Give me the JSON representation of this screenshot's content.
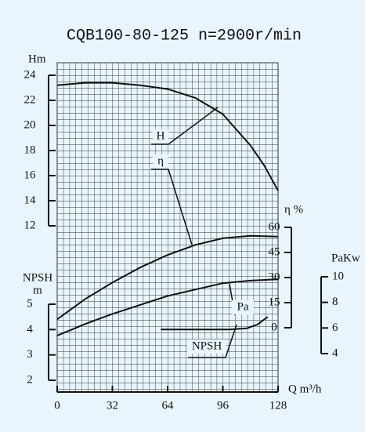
{
  "chart_data": {
    "type": "line",
    "title": "CQB100-80-125 n=2900r/min",
    "xlabel": "Q m³/h",
    "ylabel": "Hm",
    "y2label": "η %",
    "y3label": "PaKw",
    "y4label": [
      "NPSH",
      "m"
    ],
    "xlim": [
      0,
      128
    ],
    "xticks": [
      0,
      32,
      64,
      96,
      128
    ],
    "ylim": [
      12,
      24
    ],
    "yticks": [
      12,
      14,
      16,
      18,
      20,
      22,
      24
    ],
    "y2lim": [
      0,
      60
    ],
    "y2ticks": [
      0,
      15,
      30,
      45,
      60
    ],
    "y3lim": [
      4,
      10
    ],
    "y3ticks": [
      4,
      6,
      8,
      10
    ],
    "y4lim": [
      2,
      5
    ],
    "y4ticks": [
      2,
      3,
      4,
      5
    ],
    "grid": true,
    "series": [
      {
        "name": "H",
        "axis": "y",
        "color": "#111111",
        "x": [
          0,
          16,
          32,
          48,
          64,
          80,
          96,
          112,
          120,
          128
        ],
        "values": [
          23.2,
          23.4,
          23.4,
          23.2,
          22.9,
          22.2,
          20.9,
          18.4,
          16.8,
          14.8
        ]
      },
      {
        "name": "η",
        "axis": "y2",
        "color": "#111111",
        "x": [
          0,
          16,
          32,
          48,
          64,
          80,
          96,
          112,
          128
        ],
        "values": [
          5,
          17,
          27,
          36,
          43.5,
          49.5,
          53.5,
          55,
          54.5
        ]
      },
      {
        "name": "Pa",
        "axis": "y3",
        "color": "#111111",
        "x": [
          0,
          16,
          32,
          48,
          64,
          80,
          96,
          112,
          128
        ],
        "values": [
          5.4,
          6.3,
          7.1,
          7.8,
          8.5,
          9.0,
          9.5,
          9.7,
          9.8
        ]
      },
      {
        "name": "NPSH",
        "axis": "y4",
        "color": "#111111",
        "x": [
          60,
          80,
          100,
          110,
          116,
          122
        ],
        "values": [
          4.0,
          4.0,
          4.0,
          4.05,
          4.2,
          4.5
        ]
      }
    ]
  }
}
